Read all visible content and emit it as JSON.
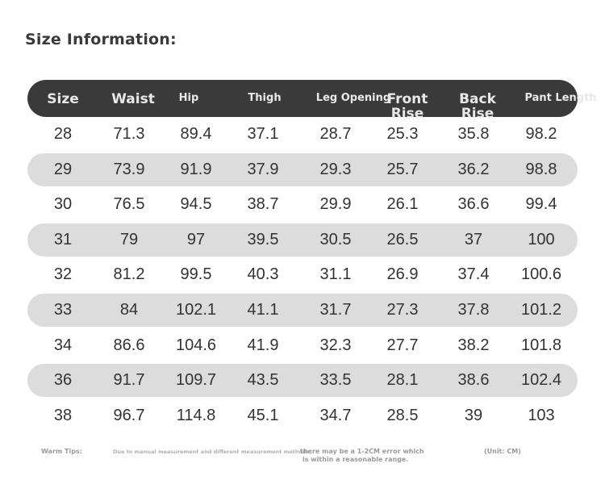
{
  "title": "Size Information:",
  "headers": [
    "Size",
    "Waist",
    "Hip",
    "Thigh",
    "Leg Opening",
    "Front Rise",
    "Back Rise",
    "Pant Length"
  ],
  "rows": [
    [
      "28",
      "71.3",
      "89.4",
      "37.1",
      "28.7",
      "25.3",
      "35.8",
      "98.2"
    ],
    [
      "29",
      "73.9",
      "91.9",
      "37.9",
      "29.3",
      "25.7",
      "36.2",
      "98.8"
    ],
    [
      "30",
      "76.5",
      "94.5",
      "38.7",
      "29.9",
      "26.1",
      "36.6",
      "99.4"
    ],
    [
      "31",
      "79",
      "97",
      "39.5",
      "30.5",
      "26.5",
      "37",
      "100"
    ],
    [
      "32",
      "81.2",
      "99.5",
      "40.3",
      "31.1",
      "26.9",
      "37.4",
      "100.6"
    ],
    [
      "33",
      "84",
      "102.1",
      "41.1",
      "31.7",
      "27.3",
      "37.8",
      "101.2"
    ],
    [
      "34",
      "86.6",
      "104.6",
      "41.9",
      "32.3",
      "27.7",
      "38.2",
      "101.8"
    ],
    [
      "36",
      "91.7",
      "109.7",
      "43.5",
      "33.5",
      "28.1",
      "38.6",
      "102.4"
    ],
    [
      "38",
      "96.7",
      "114.8",
      "45.1",
      "34.7",
      "28.5",
      "39",
      "103"
    ]
  ],
  "footer": {
    "tips_label": "Warm Tips:",
    "tips_text_1": "Due to manual measurement and different measurement methods,",
    "tips_text_2": "there may be a 1-2CM error which",
    "tips_text_3": "is within a reasonable range.",
    "unit": "(Unit: CM)"
  },
  "colors": {
    "header_bg": "#3a3a3a",
    "shaded_row": "#dcdcdc",
    "text": "#333333"
  }
}
